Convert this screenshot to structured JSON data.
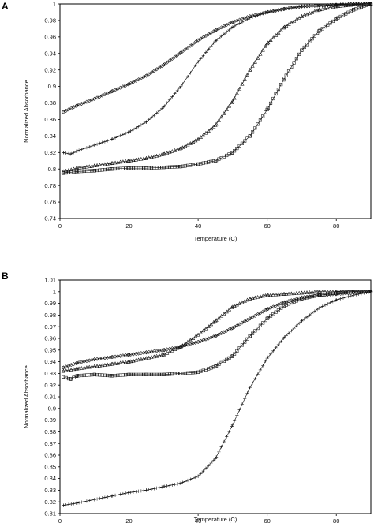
{
  "chart_data": [
    {
      "type": "scatter",
      "panel_label": "A",
      "xlabel": "Temperature (C)",
      "ylabel": "Normalized Absorbance",
      "xlim": [
        0,
        90
      ],
      "ylim": [
        0.74,
        1.0
      ],
      "x_ticks": [
        "0",
        "20",
        "40",
        "60",
        "80"
      ],
      "y_ticks": [
        "0.74",
        "0.76",
        "0.78",
        "0.8",
        "0.82",
        "0.84",
        "0.86",
        "0.88",
        "0.9",
        "0.92",
        "0.94",
        "0.96",
        "0.98",
        "1"
      ],
      "grid": false,
      "series": [
        {
          "marker": "diamond",
          "x": [
            1,
            5,
            10,
            15,
            20,
            25,
            30,
            35,
            40,
            45,
            50,
            55,
            60,
            65,
            70,
            75,
            80,
            85,
            90
          ],
          "values": [
            0.869,
            0.877,
            0.885,
            0.894,
            0.903,
            0.913,
            0.926,
            0.941,
            0.956,
            0.968,
            0.978,
            0.985,
            0.99,
            0.994,
            0.997,
            0.998,
            0.999,
            1.0,
            1.0
          ]
        },
        {
          "marker": "plus",
          "x": [
            1,
            3,
            5,
            10,
            15,
            20,
            25,
            30,
            35,
            40,
            45,
            50,
            55,
            60,
            65,
            70,
            75,
            80,
            85,
            90
          ],
          "values": [
            0.82,
            0.818,
            0.822,
            0.829,
            0.836,
            0.845,
            0.857,
            0.875,
            0.9,
            0.93,
            0.955,
            0.972,
            0.983,
            0.99,
            0.994,
            0.997,
            0.998,
            0.999,
            1.0,
            1.0
          ]
        },
        {
          "marker": "triangle",
          "x": [
            1,
            5,
            10,
            15,
            20,
            25,
            30,
            35,
            40,
            45,
            50,
            55,
            60,
            65,
            70,
            75,
            80,
            85,
            90
          ],
          "values": [
            0.797,
            0.801,
            0.804,
            0.807,
            0.81,
            0.813,
            0.818,
            0.825,
            0.836,
            0.853,
            0.882,
            0.92,
            0.952,
            0.972,
            0.985,
            0.993,
            0.997,
            0.999,
            1.0
          ]
        },
        {
          "marker": "square",
          "x": [
            1,
            5,
            10,
            15,
            20,
            25,
            30,
            35,
            40,
            45,
            50,
            55,
            60,
            65,
            70,
            75,
            80,
            85,
            90
          ],
          "values": [
            0.795,
            0.797,
            0.798,
            0.8,
            0.801,
            0.801,
            0.802,
            0.803,
            0.806,
            0.81,
            0.82,
            0.84,
            0.872,
            0.91,
            0.944,
            0.967,
            0.982,
            0.993,
            1.0
          ]
        }
      ]
    },
    {
      "type": "scatter",
      "panel_label": "B",
      "xlabel": "Temperature (C)",
      "ylabel": "Normalized Absorbance",
      "xlim": [
        0,
        90
      ],
      "ylim": [
        0.81,
        1.01
      ],
      "x_ticks": [
        "0",
        "20",
        "40",
        "60",
        "80"
      ],
      "y_ticks": [
        "0.81",
        "0.82",
        "0.83",
        "0.84",
        "0.85",
        "0.86",
        "0.87",
        "0.88",
        "0.89",
        "0.9",
        "0.91",
        "0.92",
        "0.93",
        "0.94",
        "0.95",
        "0.96",
        "0.97",
        "0.98",
        "0.99",
        "1",
        "1.01"
      ],
      "grid": false,
      "series": [
        {
          "marker": "diamond",
          "x": [
            1,
            5,
            10,
            15,
            20,
            25,
            30,
            35,
            40,
            45,
            50,
            55,
            60,
            65,
            70,
            75,
            80,
            85,
            90
          ],
          "values": [
            0.935,
            0.939,
            0.942,
            0.944,
            0.946,
            0.948,
            0.95,
            0.953,
            0.957,
            0.962,
            0.969,
            0.977,
            0.985,
            0.991,
            0.995,
            0.997,
            0.998,
            0.999,
            1.0
          ]
        },
        {
          "marker": "triangle",
          "x": [
            1,
            5,
            10,
            15,
            20,
            25,
            30,
            35,
            40,
            45,
            50,
            55,
            60,
            65,
            70,
            75,
            80,
            85,
            90
          ],
          "values": [
            0.932,
            0.934,
            0.936,
            0.938,
            0.94,
            0.943,
            0.946,
            0.953,
            0.963,
            0.975,
            0.987,
            0.994,
            0.997,
            0.998,
            0.999,
            1.0,
            1.0,
            1.0,
            1.0
          ]
        },
        {
          "marker": "square",
          "x": [
            1,
            3,
            5,
            10,
            15,
            20,
            25,
            30,
            35,
            40,
            45,
            50,
            55,
            60,
            65,
            70,
            75,
            80,
            85,
            90
          ],
          "values": [
            0.927,
            0.925,
            0.928,
            0.929,
            0.928,
            0.929,
            0.929,
            0.929,
            0.93,
            0.931,
            0.936,
            0.945,
            0.962,
            0.977,
            0.988,
            0.994,
            0.997,
            0.999,
            1.0,
            1.0
          ]
        },
        {
          "marker": "plus",
          "x": [
            1,
            5,
            10,
            15,
            20,
            25,
            30,
            35,
            40,
            45,
            50,
            55,
            60,
            65,
            70,
            75,
            80,
            85,
            90
          ],
          "values": [
            0.817,
            0.819,
            0.822,
            0.825,
            0.828,
            0.83,
            0.833,
            0.836,
            0.842,
            0.857,
            0.886,
            0.918,
            0.943,
            0.961,
            0.975,
            0.986,
            0.993,
            0.997,
            1.0
          ]
        }
      ]
    }
  ]
}
